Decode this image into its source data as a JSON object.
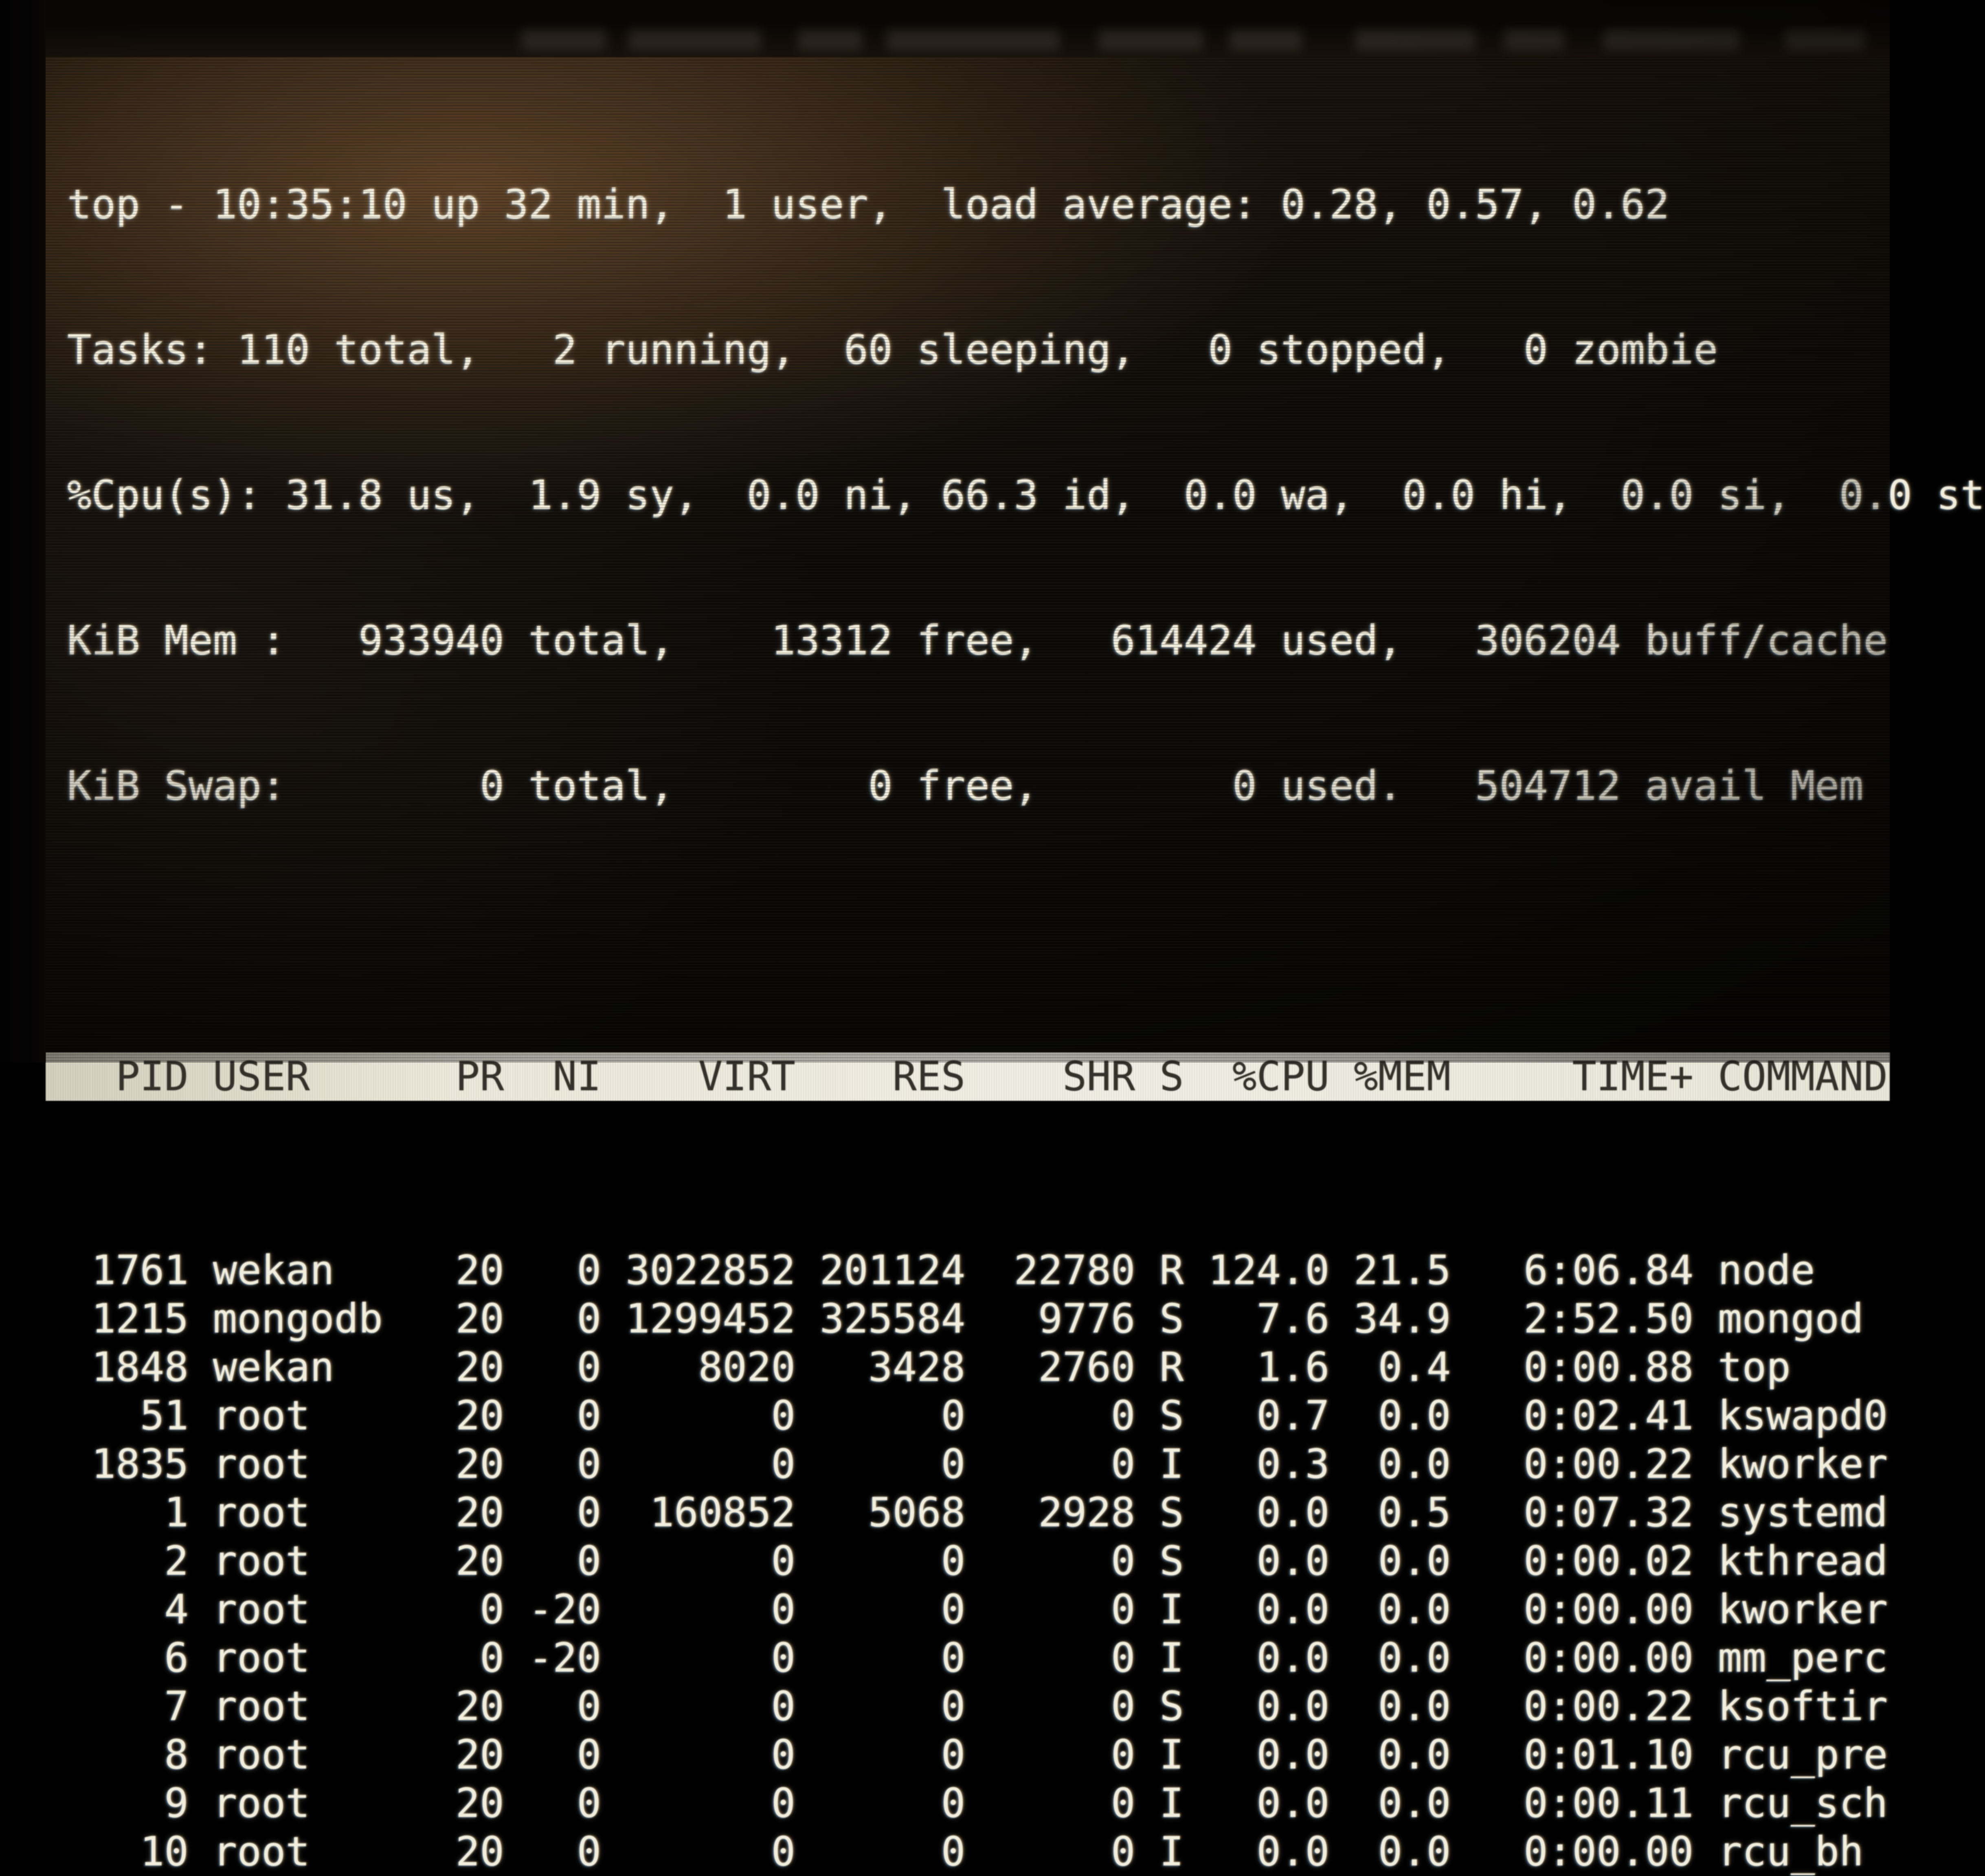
{
  "terminal": {
    "summary_lines": [
      "top - 10:35:10 up 32 min,  1 user,  load average: 0.28, 0.57, 0.62",
      "Tasks: 110 total,   2 running,  60 sleeping,   0 stopped,   0 zombie",
      "%Cpu(s): 31.8 us,  1.9 sy,  0.0 ni, 66.3 id,  0.0 wa,  0.0 hi,  0.0 si,  0.0 st",
      "KiB Mem :   933940 total,    13312 free,   614424 used,   306204 buff/cache",
      "KiB Swap:        0 total,        0 free,        0 used.   504712 avail Mem"
    ],
    "summary": {
      "clock": "10:35:10",
      "uptime": "32 min",
      "users": "1",
      "load_average": [
        "0.28",
        "0.57",
        "0.62"
      ],
      "tasks": {
        "total": "110",
        "running": "2",
        "sleeping": "60",
        "stopped": "0",
        "zombie": "0"
      },
      "cpu": {
        "us": "31.8",
        "sy": "1.9",
        "ni": "0.0",
        "id": "66.3",
        "wa": "0.0",
        "hi": "0.0",
        "si": "0.0",
        "st": "0.0"
      },
      "mem": {
        "unit": "KiB",
        "total": "933940",
        "free": "13312",
        "used": "614424",
        "buff_cache": "306204"
      },
      "swap": {
        "unit": "KiB",
        "total": "0",
        "free": "0",
        "used": "0",
        "avail_mem": "504712"
      }
    },
    "table": {
      "columns": [
        "PID",
        "USER",
        "PR",
        "NI",
        "VIRT",
        "RES",
        "SHR",
        "S",
        "%CPU",
        "%MEM",
        "TIME+",
        "COMMAND"
      ],
      "rows": [
        {
          "pid": "1761",
          "user": "wekan",
          "pr": "20",
          "ni": "0",
          "virt": "3022852",
          "res": "201124",
          "shr": "22780",
          "s": "R",
          "cpu": "124.0",
          "mem": "21.5",
          "time": "6:06.84",
          "command": "node"
        },
        {
          "pid": "1215",
          "user": "mongodb",
          "pr": "20",
          "ni": "0",
          "virt": "1299452",
          "res": "325584",
          "shr": "9776",
          "s": "S",
          "cpu": "7.6",
          "mem": "34.9",
          "time": "2:52.50",
          "command": "mongod"
        },
        {
          "pid": "1848",
          "user": "wekan",
          "pr": "20",
          "ni": "0",
          "virt": "8020",
          "res": "3428",
          "shr": "2760",
          "s": "R",
          "cpu": "1.6",
          "mem": "0.4",
          "time": "0:00.88",
          "command": "top"
        },
        {
          "pid": "51",
          "user": "root",
          "pr": "20",
          "ni": "0",
          "virt": "0",
          "res": "0",
          "shr": "0",
          "s": "S",
          "cpu": "0.7",
          "mem": "0.0",
          "time": "0:02.41",
          "command": "kswapd0"
        },
        {
          "pid": "1835",
          "user": "root",
          "pr": "20",
          "ni": "0",
          "virt": "0",
          "res": "0",
          "shr": "0",
          "s": "I",
          "cpu": "0.3",
          "mem": "0.0",
          "time": "0:00.22",
          "command": "kworker"
        },
        {
          "pid": "1",
          "user": "root",
          "pr": "20",
          "ni": "0",
          "virt": "160852",
          "res": "5068",
          "shr": "2928",
          "s": "S",
          "cpu": "0.0",
          "mem": "0.5",
          "time": "0:07.32",
          "command": "systemd"
        },
        {
          "pid": "2",
          "user": "root",
          "pr": "20",
          "ni": "0",
          "virt": "0",
          "res": "0",
          "shr": "0",
          "s": "S",
          "cpu": "0.0",
          "mem": "0.0",
          "time": "0:00.02",
          "command": "kthread"
        },
        {
          "pid": "4",
          "user": "root",
          "pr": "0",
          "ni": "-20",
          "virt": "0",
          "res": "0",
          "shr": "0",
          "s": "I",
          "cpu": "0.0",
          "mem": "0.0",
          "time": "0:00.00",
          "command": "kworker"
        },
        {
          "pid": "6",
          "user": "root",
          "pr": "0",
          "ni": "-20",
          "virt": "0",
          "res": "0",
          "shr": "0",
          "s": "I",
          "cpu": "0.0",
          "mem": "0.0",
          "time": "0:00.00",
          "command": "mm_perc"
        },
        {
          "pid": "7",
          "user": "root",
          "pr": "20",
          "ni": "0",
          "virt": "0",
          "res": "0",
          "shr": "0",
          "s": "S",
          "cpu": "0.0",
          "mem": "0.0",
          "time": "0:00.22",
          "command": "ksoftir"
        },
        {
          "pid": "8",
          "user": "root",
          "pr": "20",
          "ni": "0",
          "virt": "0",
          "res": "0",
          "shr": "0",
          "s": "I",
          "cpu": "0.0",
          "mem": "0.0",
          "time": "0:01.10",
          "command": "rcu_pre"
        },
        {
          "pid": "9",
          "user": "root",
          "pr": "20",
          "ni": "0",
          "virt": "0",
          "res": "0",
          "shr": "0",
          "s": "I",
          "cpu": "0.0",
          "mem": "0.0",
          "time": "0:00.11",
          "command": "rcu_sch"
        },
        {
          "pid": "10",
          "user": "root",
          "pr": "20",
          "ni": "0",
          "virt": "0",
          "res": "0",
          "shr": "0",
          "s": "I",
          "cpu": "0.0",
          "mem": "0.0",
          "time": "0:00.00",
          "command": "rcu_bh"
        }
      ]
    }
  },
  "colors": {
    "screen_text": "#f2eedd",
    "header_bar_bg": "#efecdf",
    "header_bar_text": "#33312a",
    "glare_warm": "#845e3a",
    "background": "#0a0907"
  }
}
